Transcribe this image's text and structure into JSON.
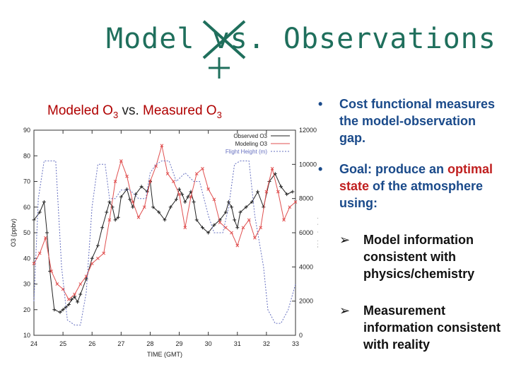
{
  "title": {
    "before": "Model",
    "struck": "vs.",
    "after": "Observations",
    "struck_symbol": "×",
    "replacement_symbol": "+"
  },
  "caption": {
    "part1": "Modeled O",
    "sub1": "3",
    "middle": " vs. ",
    "part2": "Measured O",
    "sub2": "3"
  },
  "bullets": {
    "cost_functional": "Cost functional measures the model-observation gap.",
    "goal_label": "Goal:",
    "goal_pre": " produce an ",
    "goal_highlight": "optimal state",
    "goal_post": " of the atmosphere using:",
    "sub1": "Model information consistent with physics/chemistry",
    "sub2": "Measurement information consistent with reality"
  },
  "colors": {
    "title": "#1f6f5c",
    "caption": "#b00000",
    "bullets": "#1a4a8a",
    "highlight": "#c02020",
    "observed": "#222222",
    "modeling": "#e05050",
    "flight_height": "#6670c0"
  },
  "chart_data": {
    "type": "line",
    "xlabel": "TIME (GMT)",
    "ylabel": "O3 (ppbv)",
    "y2label": "Altitude (m)",
    "xlim": [
      24,
      33
    ],
    "ylim": [
      10,
      90
    ],
    "y2lim": [
      0,
      12000
    ],
    "xticks": [
      "24",
      "25",
      "26",
      "27",
      "28",
      "29",
      "30",
      "31",
      "32",
      "33"
    ],
    "yticks": [
      "10",
      "20",
      "30",
      "40",
      "50",
      "60",
      "70",
      "80",
      "90"
    ],
    "y2ticks": [
      "0",
      "2000",
      "4000",
      "6000",
      "8000",
      "10000",
      "12000"
    ],
    "grid": false,
    "legend_position": "top-right",
    "series": [
      {
        "name": "Observed O3",
        "axis": "left",
        "color": "#222222",
        "marker": "+",
        "x": [
          24.0,
          24.2,
          24.35,
          24.45,
          24.55,
          24.7,
          24.9,
          25.0,
          25.1,
          25.2,
          25.3,
          25.4,
          25.5,
          25.6,
          25.8,
          26.0,
          26.2,
          26.35,
          26.5,
          26.6,
          26.7,
          26.8,
          26.9,
          27.0,
          27.2,
          27.3,
          27.4,
          27.5,
          27.7,
          27.9,
          28.0,
          28.1,
          28.3,
          28.5,
          28.7,
          28.9,
          29.0,
          29.1,
          29.2,
          29.3,
          29.4,
          29.5,
          29.6,
          29.8,
          30.0,
          30.2,
          30.4,
          30.6,
          30.7,
          30.8,
          30.9,
          31.0,
          31.1,
          31.3,
          31.5,
          31.7,
          31.9,
          32.1,
          32.3,
          32.5,
          32.7,
          32.9
        ],
        "y": [
          55,
          58,
          62,
          50,
          35,
          20,
          19,
          20,
          21,
          22,
          24,
          25,
          23,
          26,
          32,
          40,
          45,
          52,
          58,
          62,
          60,
          55,
          56,
          64,
          67,
          63,
          60,
          65,
          68,
          66,
          70,
          60,
          58,
          55,
          60,
          63,
          67,
          65,
          62,
          64,
          66,
          62,
          55,
          52,
          50,
          53,
          55,
          58,
          62,
          60,
          55,
          52,
          58,
          60,
          62,
          66,
          60,
          70,
          73,
          68,
          65,
          66
        ]
      },
      {
        "name": "Modeling O3",
        "axis": "left",
        "color": "#e05050",
        "marker": "x",
        "x": [
          24.0,
          24.2,
          24.4,
          24.6,
          24.8,
          25.0,
          25.2,
          25.4,
          25.6,
          25.8,
          26.0,
          26.2,
          26.4,
          26.6,
          26.8,
          27.0,
          27.2,
          27.4,
          27.6,
          27.8,
          28.0,
          28.2,
          28.4,
          28.6,
          28.8,
          29.0,
          29.2,
          29.4,
          29.6,
          29.8,
          30.0,
          30.2,
          30.4,
          30.6,
          30.8,
          31.0,
          31.2,
          31.4,
          31.6,
          31.8,
          32.0,
          32.2,
          32.4,
          32.6,
          32.8,
          33.0
        ],
        "y": [
          38,
          42,
          48,
          35,
          30,
          28,
          24,
          26,
          30,
          33,
          38,
          40,
          42,
          55,
          70,
          78,
          72,
          62,
          56,
          60,
          70,
          76,
          84,
          73,
          70,
          65,
          52,
          64,
          73,
          75,
          67,
          63,
          54,
          52,
          50,
          45,
          52,
          55,
          48,
          52,
          66,
          75,
          66,
          55,
          60,
          62
        ]
      },
      {
        "name": "Flight Height (m)",
        "axis": "right",
        "color": "#6670c0",
        "marker": "none",
        "x": [
          24.0,
          24.15,
          24.35,
          24.5,
          24.75,
          24.95,
          25.15,
          25.4,
          25.6,
          25.8,
          26.0,
          26.2,
          26.45,
          26.6,
          26.8,
          27.0,
          27.3,
          27.6,
          27.85,
          28.0,
          28.2,
          28.4,
          28.65,
          28.9,
          29.2,
          29.5,
          29.7,
          29.85,
          30.0,
          30.2,
          30.5,
          30.7,
          30.9,
          31.1,
          31.4,
          31.6,
          31.9,
          32.05,
          32.3,
          32.5,
          32.75,
          33.0
        ],
        "y": [
          2000,
          8000,
          10200,
          10200,
          10200,
          4000,
          900,
          600,
          600,
          2500,
          7500,
          10000,
          10000,
          8000,
          8000,
          8500,
          8500,
          8000,
          8000,
          9500,
          10000,
          10200,
          10200,
          9000,
          9500,
          9000,
          9000,
          8000,
          7000,
          6000,
          6000,
          7500,
          10000,
          10200,
          10200,
          7000,
          4000,
          1500,
          700,
          700,
          1500,
          3000
        ]
      }
    ]
  }
}
